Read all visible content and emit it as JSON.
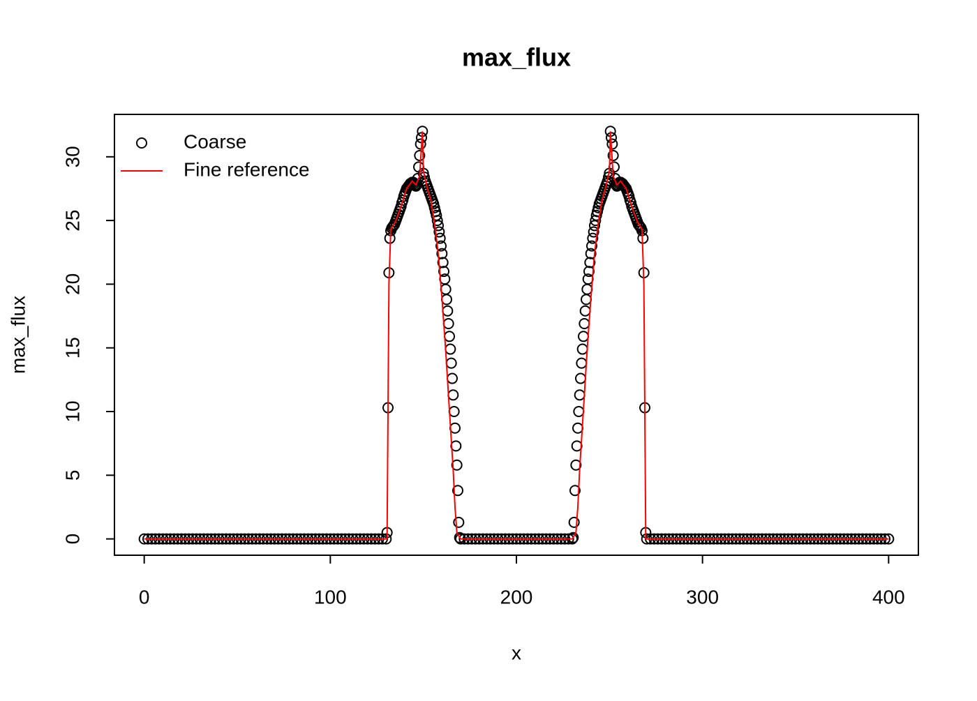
{
  "chart_data": {
    "type": "scatter",
    "title": "max_flux",
    "x_label": "x",
    "y_label": "max_flux",
    "xlim": [
      -16,
      416
    ],
    "ylim": [
      -1.28,
      33.33
    ],
    "xticks": [
      0,
      100,
      200,
      300,
      400
    ],
    "yticks": [
      0,
      5,
      10,
      15,
      20,
      25,
      30
    ],
    "legend": "top-left",
    "series": [
      {
        "name": "Coarse",
        "type": "scatter",
        "color": "#000000",
        "x": [
          0,
          2,
          4,
          6,
          8,
          10,
          12,
          14,
          16,
          18,
          20,
          22,
          24,
          26,
          28,
          30,
          32,
          34,
          36,
          38,
          40,
          42,
          44,
          46,
          48,
          50,
          52,
          54,
          56,
          58,
          60,
          62,
          64,
          66,
          68,
          70,
          72,
          74,
          76,
          78,
          80,
          82,
          84,
          86,
          88,
          90,
          92,
          94,
          96,
          98,
          100,
          102,
          104,
          106,
          108,
          110,
          112,
          114,
          116,
          118,
          120,
          122,
          124,
          126,
          128,
          130,
          130.5,
          131,
          131.5,
          132,
          132.5,
          133,
          133.5,
          134,
          134.5,
          135,
          135.5,
          136,
          136.5,
          137,
          137.5,
          138,
          138.5,
          139,
          139.5,
          140,
          140.5,
          141,
          141.5,
          142,
          142.5,
          143,
          143.5,
          144,
          144.5,
          145,
          145.5,
          146,
          146.5,
          147,
          147.5,
          148,
          148.5,
          149,
          149.5,
          150,
          150.5,
          151,
          151.5,
          152,
          152.5,
          153,
          153.5,
          154,
          154.5,
          155,
          155.5,
          156,
          156.5,
          157,
          157.5,
          158,
          158.5,
          159,
          159.5,
          160,
          160.5,
          161,
          161.5,
          162,
          162.5,
          163,
          163.5,
          164,
          164.5,
          165,
          165.5,
          166,
          166.5,
          167,
          167.5,
          168,
          168.5,
          169,
          169.5,
          170,
          172,
          174,
          176,
          178,
          180,
          182,
          184,
          186,
          188,
          190,
          192,
          194,
          196,
          198,
          200,
          202,
          204,
          206,
          208,
          210,
          212,
          214,
          216,
          218,
          220,
          222,
          224,
          226,
          228,
          230,
          230.5,
          231,
          231.5,
          232,
          232.5,
          233,
          233.5,
          234,
          234.5,
          235,
          235.5,
          236,
          236.5,
          237,
          237.5,
          238,
          238.5,
          239,
          239.5,
          240,
          240.5,
          241,
          241.5,
          242,
          242.5,
          243,
          243.5,
          244,
          244.5,
          245,
          245.5,
          246,
          246.5,
          247,
          247.5,
          248,
          248.5,
          249,
          249.5,
          250,
          250.5,
          251,
          251.5,
          252,
          252.5,
          253,
          253.5,
          254,
          254.5,
          255,
          255.5,
          256,
          256.5,
          257,
          257.5,
          258,
          258.5,
          259,
          259.5,
          260,
          260.5,
          261,
          261.5,
          262,
          262.5,
          263,
          263.5,
          264,
          264.5,
          265,
          265.5,
          266,
          266.5,
          267,
          267.5,
          268,
          268.5,
          269,
          269.5,
          270,
          272,
          274,
          276,
          278,
          280,
          282,
          284,
          286,
          288,
          290,
          292,
          294,
          296,
          298,
          300,
          302,
          304,
          306,
          308,
          310,
          312,
          314,
          316,
          318,
          320,
          322,
          324,
          326,
          328,
          330,
          332,
          334,
          336,
          338,
          340,
          342,
          344,
          346,
          348,
          350,
          352,
          354,
          356,
          358,
          360,
          362,
          364,
          366,
          368,
          370,
          372,
          374,
          376,
          378,
          380,
          382,
          384,
          386,
          388,
          390,
          392,
          394,
          396,
          398,
          400
        ],
        "values": [
          0,
          0,
          0,
          0,
          0,
          0,
          0,
          0,
          0,
          0,
          0,
          0,
          0,
          0,
          0,
          0,
          0,
          0,
          0,
          0,
          0,
          0,
          0,
          0,
          0,
          0,
          0,
          0,
          0,
          0,
          0,
          0,
          0,
          0,
          0,
          0,
          0,
          0,
          0,
          0,
          0,
          0,
          0,
          0,
          0,
          0,
          0,
          0,
          0,
          0,
          0,
          0,
          0,
          0,
          0,
          0,
          0,
          0,
          0,
          0,
          0,
          0,
          0,
          0,
          0,
          0,
          0.5,
          10.3,
          20.9,
          23.6,
          24.2,
          24.4,
          24.5,
          24.6,
          24.7,
          24.9,
          25.1,
          25.3,
          25.5,
          25.7,
          25.9,
          26.1,
          26.4,
          26.6,
          26.9,
          27.1,
          27.3,
          27.5,
          27.6,
          27.7,
          27.8,
          27.9,
          27.9,
          28.0,
          28.0,
          27.9,
          27.8,
          27.7,
          27.8,
          28.3,
          29.2,
          30.1,
          31.0,
          31.5,
          32.0,
          28.7,
          28.4,
          28.1,
          27.9,
          27.7,
          27.5,
          27.3,
          27.1,
          26.9,
          26.7,
          26.5,
          26.3,
          26.0,
          25.7,
          25.4,
          25.0,
          24.6,
          24.1,
          23.6,
          23.0,
          22.4,
          21.7,
          21.0,
          20.4,
          19.6,
          18.8,
          17.9,
          16.9,
          15.9,
          14.9,
          13.8,
          12.6,
          11.3,
          10.0,
          8.7,
          7.3,
          5.8,
          3.8,
          1.3,
          0.1,
          0,
          0,
          0,
          0,
          0,
          0,
          0,
          0,
          0,
          0,
          0,
          0,
          0,
          0,
          0,
          0,
          0,
          0,
          0,
          0,
          0,
          0,
          0,
          0,
          0,
          0,
          0,
          0,
          0,
          0,
          0,
          0.1,
          1.3,
          3.8,
          5.8,
          7.3,
          8.7,
          10.0,
          11.3,
          12.6,
          13.8,
          14.9,
          15.9,
          16.9,
          17.9,
          18.8,
          19.6,
          20.4,
          21.0,
          21.7,
          22.4,
          23.0,
          23.6,
          24.1,
          24.6,
          25.0,
          25.4,
          25.7,
          26.0,
          26.3,
          26.5,
          26.7,
          26.9,
          27.1,
          27.3,
          27.5,
          27.7,
          27.9,
          28.1,
          28.4,
          28.7,
          32.0,
          31.5,
          31.0,
          30.1,
          29.2,
          28.3,
          27.8,
          27.7,
          27.8,
          27.9,
          28.0,
          28.0,
          27.9,
          27.9,
          27.8,
          27.7,
          27.6,
          27.5,
          27.3,
          27.1,
          26.9,
          26.6,
          26.4,
          26.1,
          25.9,
          25.7,
          25.5,
          25.3,
          25.1,
          24.9,
          24.7,
          24.6,
          24.5,
          24.4,
          24.2,
          23.6,
          20.9,
          10.3,
          0.5,
          0,
          0,
          0,
          0,
          0,
          0,
          0,
          0,
          0,
          0,
          0,
          0,
          0,
          0,
          0,
          0,
          0,
          0,
          0,
          0,
          0,
          0,
          0,
          0,
          0,
          0,
          0,
          0,
          0,
          0,
          0,
          0,
          0,
          0,
          0,
          0,
          0,
          0,
          0,
          0,
          0,
          0,
          0,
          0,
          0,
          0,
          0,
          0,
          0,
          0,
          0,
          0,
          0,
          0,
          0,
          0,
          0,
          0,
          0,
          0,
          0,
          0,
          0,
          0,
          0,
          0
        ]
      },
      {
        "name": "Fine reference",
        "type": "line",
        "color": "#ff0000",
        "x": [
          0,
          130.5,
          131.5,
          132.5,
          135,
          138,
          141,
          144,
          146,
          148,
          149.5,
          150,
          152,
          154,
          156,
          158,
          160,
          162,
          164,
          166,
          167,
          168,
          170,
          230,
          232,
          233,
          234,
          236,
          238,
          240,
          242,
          244,
          246,
          248,
          250,
          250.5,
          252,
          254,
          256,
          259,
          262,
          265,
          267.5,
          268.5,
          269.5,
          400
        ],
        "values": [
          0,
          0,
          20,
          24.3,
          24.9,
          26.1,
          27.5,
          28.1,
          27.8,
          28.5,
          32,
          28.9,
          27.6,
          26.6,
          24.8,
          22.4,
          18.9,
          14.8,
          10.1,
          5.5,
          2.5,
          0.5,
          0,
          0,
          0.5,
          2.5,
          5.5,
          10.1,
          14.8,
          18.9,
          22.4,
          24.8,
          26.6,
          27.6,
          28.9,
          32,
          28.5,
          27.8,
          28.1,
          27.5,
          26.1,
          24.9,
          24.3,
          20,
          0,
          0
        ]
      }
    ]
  }
}
